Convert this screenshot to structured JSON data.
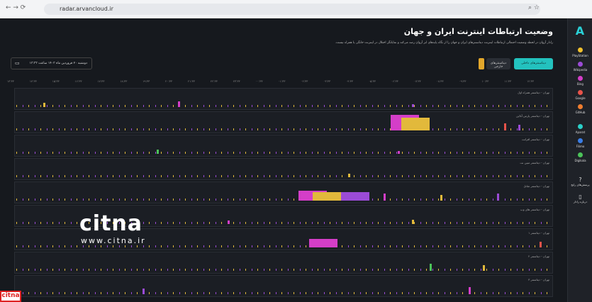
{
  "browser": {
    "url": "radar.arvancloud.ir"
  },
  "header": {
    "title": "وضعیت ارتباطات اینترنت ایران و جهان",
    "subtitle": "رادار آروان در لحظه وضعیت احتمالی ارتباطات اینترنت دیتاسنترهای ایران و جهان را از نگاه پایه‌های ابر آروان رصد می‌کند و نمایانگر اختلال در اینترنت خانگی یا همراه نیست."
  },
  "tabs": [
    "دیتاسنترهای داخلی",
    "دیتاسنترهای خارجی"
  ],
  "date": "دوشنبه ۲۰ فروردین ماه ۱۴۰۳ ساعت ۱۳:۳۳",
  "timeline": [
    "۱۳:۳۳",
    "۱۴:۳۳",
    "۱۵:۳۳",
    "۱۶:۳۳",
    "۱۷:۳۳",
    "۱۸:۳۳",
    "۱۹:۳۳",
    "۲۰:۳۳",
    "۲۱:۳۳",
    "۲۲:۳۳",
    "۲۳:۳۳",
    "۰۰:۳۳",
    "۰۱:۳۳",
    "۰۲:۳۳",
    "۰۳:۳۳",
    "۰۴:۳۳",
    "۰۵:۳۳",
    "۰۶:۳۳",
    "۰۷:۳۳",
    "۰۸:۳۳",
    "۰۹:۳۳",
    "۱۰:۳۳",
    "۱۱:۳۳",
    "۱۲:۳۳"
  ],
  "rows": [
    "تهران - دیتاسنتر همراه اول",
    "تهران - دیتاسنتر پارس آنلاین",
    "تهران - دیتاسنتر افرانت",
    "تهران - دیتاسنتر مبین نت",
    "تهران - دیتاسنتر شاتل",
    "تهران - دیتاسنتر های وب",
    "تهران - دیتاسنتر ۱",
    "تهران - دیتاسنتر ۲",
    "تهران - دیتاسنتر ۳"
  ],
  "sidebar": {
    "services": [
      "PlayStation",
      "Wikipedia",
      "Bing",
      "Google",
      "GitHub",
      "Aparat",
      "Filimo",
      "Digikala"
    ],
    "links": [
      "پرسش‌های رایج",
      "درباره رادار"
    ]
  },
  "watermark": {
    "brand": "citna",
    "url": "www.citna.ir"
  }
}
